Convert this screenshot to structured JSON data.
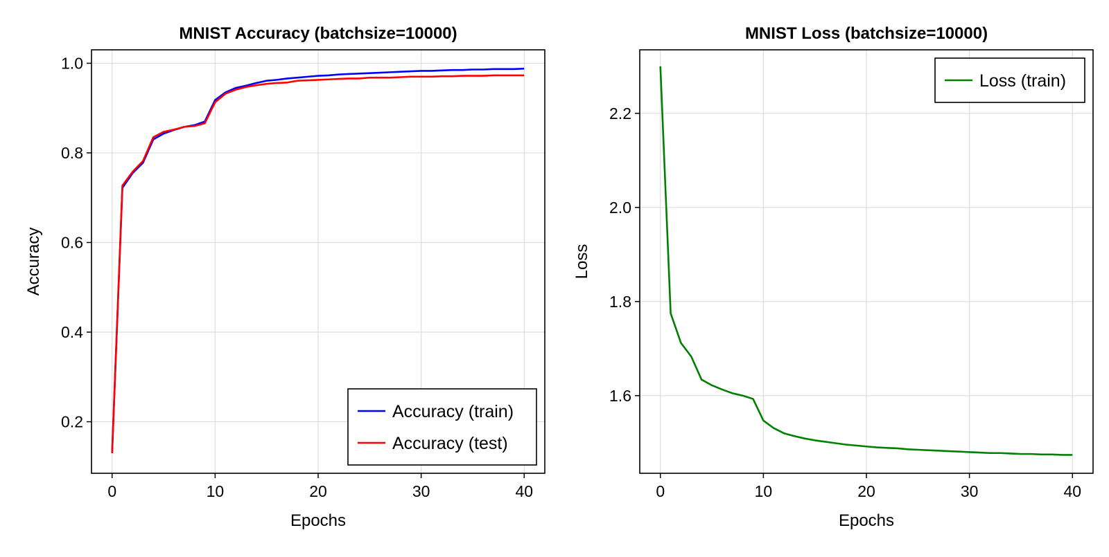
{
  "chart_data": [
    {
      "type": "line",
      "title": "MNIST Accuracy (batchsize=10000)",
      "xlabel": "Epochs",
      "ylabel": "Accuracy",
      "xlim": [
        -2,
        42
      ],
      "ylim": [
        0.085,
        1.03
      ],
      "xticks": [
        0,
        10,
        20,
        30,
        40
      ],
      "xtick_labels": [
        "0",
        "10",
        "20",
        "30",
        "40"
      ],
      "yticks": [
        0.2,
        0.4,
        0.6,
        0.8,
        1.0
      ],
      "ytick_labels": [
        "0.2",
        "0.4",
        "0.6",
        "0.8",
        "1.0"
      ],
      "grid": true,
      "legend_position": "bottom-right",
      "x": [
        0,
        1,
        2,
        3,
        4,
        5,
        6,
        7,
        8,
        9,
        10,
        11,
        12,
        13,
        14,
        15,
        16,
        17,
        18,
        19,
        20,
        21,
        22,
        23,
        24,
        25,
        26,
        27,
        28,
        29,
        30,
        31,
        32,
        33,
        34,
        35,
        36,
        37,
        38,
        39,
        40
      ],
      "series": [
        {
          "name": "Accuracy (train)",
          "color": "#0000ff",
          "values": [
            0.13,
            0.722,
            0.755,
            0.778,
            0.83,
            0.843,
            0.851,
            0.858,
            0.862,
            0.87,
            0.918,
            0.935,
            0.945,
            0.95,
            0.956,
            0.961,
            0.963,
            0.966,
            0.968,
            0.97,
            0.972,
            0.973,
            0.975,
            0.976,
            0.977,
            0.978,
            0.979,
            0.98,
            0.981,
            0.982,
            0.983,
            0.983,
            0.984,
            0.985,
            0.985,
            0.986,
            0.986,
            0.987,
            0.987,
            0.987,
            0.988
          ]
        },
        {
          "name": "Accuracy (test)",
          "color": "#ff0000",
          "values": [
            0.13,
            0.727,
            0.758,
            0.782,
            0.835,
            0.847,
            0.852,
            0.858,
            0.86,
            0.866,
            0.913,
            0.932,
            0.941,
            0.947,
            0.951,
            0.954,
            0.956,
            0.957,
            0.961,
            0.962,
            0.963,
            0.964,
            0.965,
            0.966,
            0.966,
            0.968,
            0.968,
            0.968,
            0.969,
            0.97,
            0.97,
            0.97,
            0.971,
            0.971,
            0.972,
            0.972,
            0.972,
            0.973,
            0.973,
            0.973,
            0.973
          ]
        }
      ]
    },
    {
      "type": "line",
      "title": "MNIST Loss (batchsize=10000)",
      "xlabel": "Epochs",
      "ylabel": "Loss",
      "xlim": [
        -2,
        42
      ],
      "ylim": [
        1.435,
        2.335
      ],
      "xticks": [
        0,
        10,
        20,
        30,
        40
      ],
      "xtick_labels": [
        "0",
        "10",
        "20",
        "30",
        "40"
      ],
      "yticks": [
        1.6,
        1.8,
        2.0,
        2.2
      ],
      "ytick_labels": [
        "1.6",
        "1.8",
        "2.0",
        "2.2"
      ],
      "grid": true,
      "legend_position": "top-right",
      "x": [
        0,
        1,
        2,
        3,
        4,
        5,
        6,
        7,
        8,
        9,
        10,
        11,
        12,
        13,
        14,
        15,
        16,
        17,
        18,
        19,
        20,
        21,
        22,
        23,
        24,
        25,
        26,
        27,
        28,
        29,
        30,
        31,
        32,
        33,
        34,
        35,
        36,
        37,
        38,
        39,
        40
      ],
      "series": [
        {
          "name": "Loss (train)",
          "color": "#008000",
          "values": [
            2.3,
            1.775,
            1.712,
            1.683,
            1.634,
            1.622,
            1.613,
            1.605,
            1.6,
            1.593,
            1.547,
            1.531,
            1.52,
            1.514,
            1.509,
            1.505,
            1.502,
            1.499,
            1.496,
            1.494,
            1.492,
            1.49,
            1.489,
            1.488,
            1.486,
            1.485,
            1.484,
            1.483,
            1.482,
            1.481,
            1.48,
            1.479,
            1.478,
            1.478,
            1.477,
            1.476,
            1.476,
            1.475,
            1.475,
            1.474,
            1.474
          ]
        }
      ]
    }
  ]
}
